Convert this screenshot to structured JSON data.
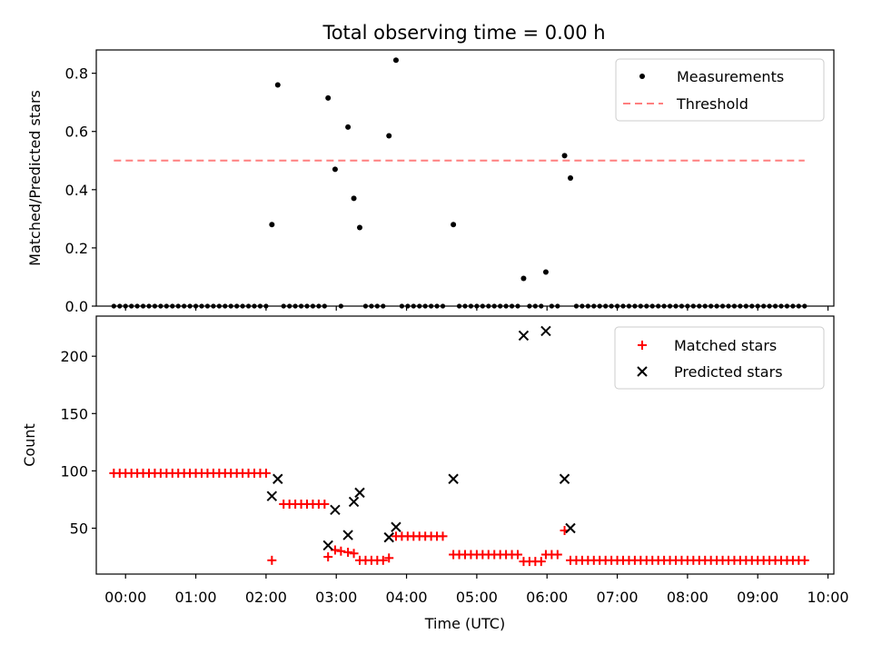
{
  "title": "Total observing time = 0.00 h",
  "chart_data": [
    {
      "type": "scatter",
      "panel": "top",
      "ylabel": "Matched/Predicted stars",
      "ylim": [
        0,
        0.88
      ],
      "y_ticks": [
        0.0,
        0.2,
        0.4,
        0.6,
        0.8
      ],
      "y_tick_labels": [
        "0.0",
        "0.2",
        "0.4",
        "0.6",
        "0.8"
      ],
      "legend": {
        "placement": "top-right",
        "entries": [
          "Measurements",
          "Threshold"
        ]
      },
      "threshold": {
        "name": "Threshold",
        "value": 0.5,
        "x_range": [
          "23:50",
          "09:40"
        ],
        "color": "#ff7f7f",
        "style": "dashed"
      },
      "series": [
        {
          "name": "Measurements",
          "color": "#000000",
          "points": [
            [
              "02:05",
              0.28
            ],
            [
              "02:10",
              0.76
            ],
            [
              "02:53",
              0.715
            ],
            [
              "02:59",
              0.47
            ],
            [
              "03:10",
              0.615
            ],
            [
              "03:15",
              0.37
            ],
            [
              "03:20",
              0.27
            ],
            [
              "03:45",
              0.585
            ],
            [
              "03:51",
              0.845
            ],
            [
              "04:40",
              0.28
            ],
            [
              "05:40",
              0.095
            ],
            [
              "05:59",
              0.117
            ],
            [
              "06:15",
              0.517
            ],
            [
              "06:20",
              0.44
            ]
          ],
          "zero_points": [
            [
              "23:50",
              "02:00",
              5
            ],
            [
              "02:15",
              "02:50",
              5
            ],
            [
              "03:04",
              "03:04",
              1
            ],
            [
              "03:25",
              "03:40",
              5
            ],
            [
              "03:56",
              "04:35",
              5
            ],
            [
              "04:45",
              "05:35",
              5
            ],
            [
              "05:45",
              "05:55",
              5
            ],
            [
              "06:04",
              "06:10",
              5
            ],
            [
              "06:25",
              "09:40",
              5
            ]
          ]
        }
      ]
    },
    {
      "type": "scatter",
      "panel": "bottom",
      "ylabel": "Count",
      "xlabel": "Time (UTC)",
      "ylim": [
        10,
        235
      ],
      "y_ticks": [
        50,
        100,
        150,
        200
      ],
      "y_tick_labels": [
        "50",
        "100",
        "150",
        "200"
      ],
      "x_range": [
        "23:35",
        "10:05"
      ],
      "x_ticks": [
        "00:00",
        "01:00",
        "02:00",
        "03:00",
        "04:00",
        "05:00",
        "06:00",
        "07:00",
        "08:00",
        "09:00",
        "10:00"
      ],
      "x_tick_labels": [
        "00:00",
        "01:00",
        "02:00",
        "03:00",
        "04:00",
        "05:00",
        "06:00",
        "07:00",
        "08:00",
        "09:00",
        "10:00"
      ],
      "legend": {
        "placement": "top-right",
        "entries": [
          "Matched stars",
          "Predicted stars"
        ]
      },
      "series": [
        {
          "name": "Matched stars",
          "marker": "+",
          "color": "#ff0000",
          "steps": [
            [
              "23:50",
              "02:00",
              5,
              98
            ],
            [
              "02:15",
              "02:50",
              5,
              71
            ],
            [
              "02:59",
              "02:59",
              1,
              31
            ],
            [
              "03:04",
              "03:04",
              1,
              30
            ],
            [
              "03:10",
              "03:10",
              1,
              29
            ],
            [
              "03:15",
              "03:15",
              1,
              28
            ],
            [
              "03:20",
              "03:40",
              5,
              22
            ],
            [
              "03:51",
              "04:35",
              5,
              43
            ],
            [
              "04:45",
              "05:35",
              5,
              27
            ],
            [
              "05:40",
              "05:55",
              5,
              21
            ],
            [
              "05:59",
              "06:10",
              5,
              27
            ],
            [
              "06:20",
              "09:40",
              5,
              22
            ]
          ],
          "points": [
            [
              "02:05",
              22
            ],
            [
              "02:53",
              25
            ],
            [
              "03:45",
              24
            ],
            [
              "04:40",
              27
            ],
            [
              "06:15",
              48
            ]
          ]
        },
        {
          "name": "Predicted stars",
          "marker": "x",
          "color": "#000000",
          "points": [
            [
              "02:05",
              78
            ],
            [
              "02:10",
              93
            ],
            [
              "02:53",
              35
            ],
            [
              "02:59",
              66
            ],
            [
              "03:10",
              44
            ],
            [
              "03:15",
              73
            ],
            [
              "03:20",
              81
            ],
            [
              "03:45",
              42
            ],
            [
              "03:51",
              51
            ],
            [
              "04:40",
              93
            ],
            [
              "05:40",
              218
            ],
            [
              "05:59",
              222
            ],
            [
              "06:15",
              93
            ],
            [
              "06:20",
              50
            ]
          ]
        }
      ]
    }
  ]
}
